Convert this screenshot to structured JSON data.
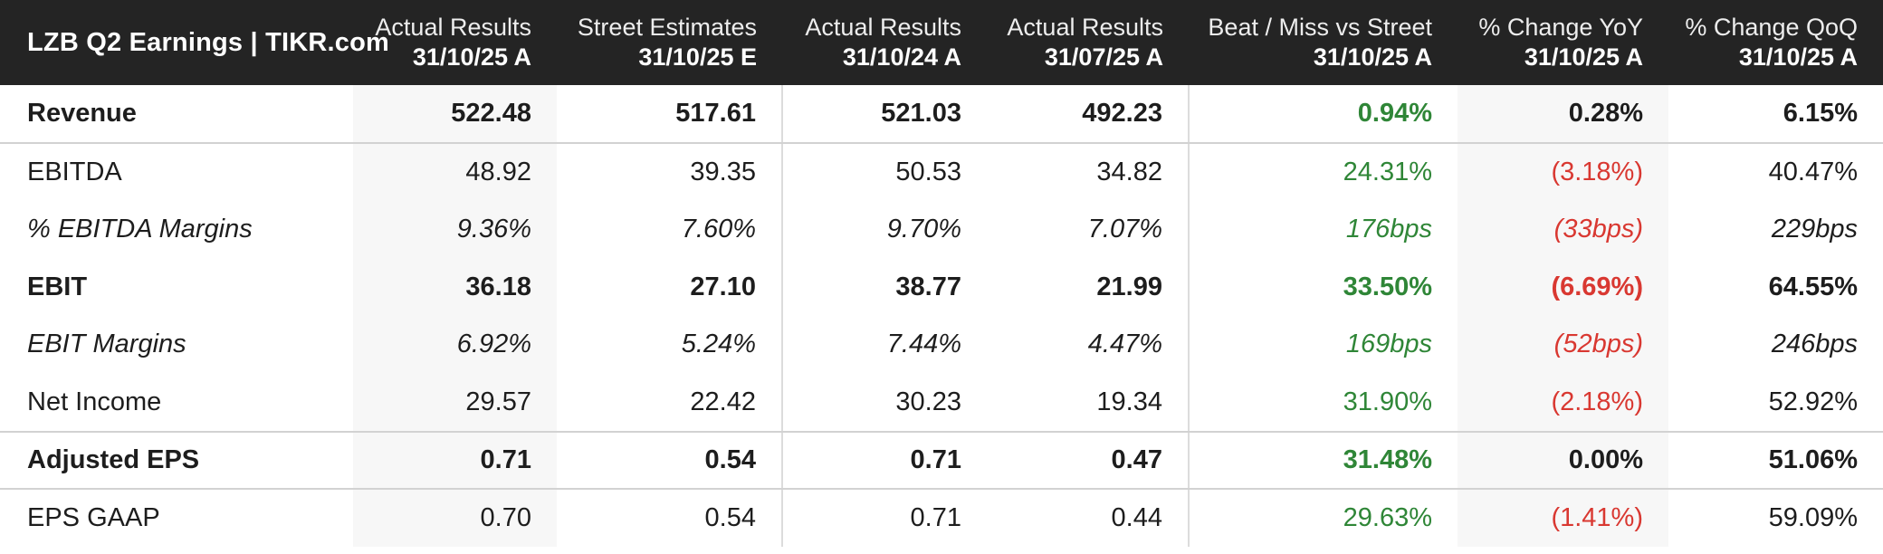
{
  "colors": {
    "green": "#2f8637",
    "red": "#d93831",
    "header_bg": "#242424",
    "column_highlight_bg": "#f7f7f7",
    "separator_line": "#d2d2d2",
    "vertical_line": "#dcdcdc",
    "body_text": "#1d1d1d"
  },
  "table": {
    "title": "LZB Q2 Earnings | TIKR.com",
    "columns": [
      {
        "label": "Actual Results",
        "date": "31/10/25 A"
      },
      {
        "label": "Street Estimates",
        "date": "31/10/25 E"
      },
      {
        "label": "Actual Results",
        "date": "31/10/24 A"
      },
      {
        "label": "Actual Results",
        "date": "31/07/25 A"
      },
      {
        "label": "Beat / Miss vs Street",
        "date": "31/10/25 A"
      },
      {
        "label": "% Change YoY",
        "date": "31/10/25 A"
      },
      {
        "label": "% Change QoQ",
        "date": "31/10/25 A"
      }
    ],
    "rows": [
      {
        "label": "Revenue",
        "style": "bold",
        "values": [
          {
            "text": "522.48",
            "color": "default"
          },
          {
            "text": "517.61",
            "color": "default"
          },
          {
            "text": "521.03",
            "color": "default"
          },
          {
            "text": "492.23",
            "color": "default"
          },
          {
            "text": "0.94%",
            "color": "green"
          },
          {
            "text": "0.28%",
            "color": "default"
          },
          {
            "text": "6.15%",
            "color": "default"
          }
        ]
      },
      {
        "label": "EBITDA",
        "style": "normal",
        "values": [
          {
            "text": "48.92",
            "color": "default"
          },
          {
            "text": "39.35",
            "color": "default"
          },
          {
            "text": "50.53",
            "color": "default"
          },
          {
            "text": "34.82",
            "color": "default"
          },
          {
            "text": "24.31%",
            "color": "green"
          },
          {
            "text": "(3.18%)",
            "color": "red"
          },
          {
            "text": "40.47%",
            "color": "default"
          }
        ]
      },
      {
        "label": "% EBITDA Margins",
        "style": "italic",
        "values": [
          {
            "text": "9.36%",
            "color": "default"
          },
          {
            "text": "7.60%",
            "color": "default"
          },
          {
            "text": "9.70%",
            "color": "default"
          },
          {
            "text": "7.07%",
            "color": "default"
          },
          {
            "text": "176bps",
            "color": "green"
          },
          {
            "text": "(33bps)",
            "color": "red"
          },
          {
            "text": "229bps",
            "color": "default"
          }
        ]
      },
      {
        "label": "EBIT",
        "style": "bold",
        "values": [
          {
            "text": "36.18",
            "color": "default"
          },
          {
            "text": "27.10",
            "color": "default"
          },
          {
            "text": "38.77",
            "color": "default"
          },
          {
            "text": "21.99",
            "color": "default"
          },
          {
            "text": "33.50%",
            "color": "green"
          },
          {
            "text": "(6.69%)",
            "color": "red"
          },
          {
            "text": "64.55%",
            "color": "default"
          }
        ]
      },
      {
        "label": "EBIT Margins",
        "style": "italic",
        "values": [
          {
            "text": "6.92%",
            "color": "default"
          },
          {
            "text": "5.24%",
            "color": "default"
          },
          {
            "text": "7.44%",
            "color": "default"
          },
          {
            "text": "4.47%",
            "color": "default"
          },
          {
            "text": "169bps",
            "color": "green"
          },
          {
            "text": "(52bps)",
            "color": "red"
          },
          {
            "text": "246bps",
            "color": "default"
          }
        ]
      },
      {
        "label": "Net Income",
        "style": "normal",
        "values": [
          {
            "text": "29.57",
            "color": "default"
          },
          {
            "text": "22.42",
            "color": "default"
          },
          {
            "text": "30.23",
            "color": "default"
          },
          {
            "text": "19.34",
            "color": "default"
          },
          {
            "text": "31.90%",
            "color": "green"
          },
          {
            "text": "(2.18%)",
            "color": "red"
          },
          {
            "text": "52.92%",
            "color": "default"
          }
        ]
      },
      {
        "label": "Adjusted EPS",
        "style": "bold",
        "values": [
          {
            "text": "0.71",
            "color": "default"
          },
          {
            "text": "0.54",
            "color": "default"
          },
          {
            "text": "0.71",
            "color": "default"
          },
          {
            "text": "0.47",
            "color": "default"
          },
          {
            "text": "31.48%",
            "color": "green"
          },
          {
            "text": "0.00%",
            "color": "default"
          },
          {
            "text": "51.06%",
            "color": "default"
          }
        ]
      },
      {
        "label": "EPS GAAP",
        "style": "normal",
        "values": [
          {
            "text": "0.70",
            "color": "default"
          },
          {
            "text": "0.54",
            "color": "default"
          },
          {
            "text": "0.71",
            "color": "default"
          },
          {
            "text": "0.44",
            "color": "default"
          },
          {
            "text": "29.63%",
            "color": "green"
          },
          {
            "text": "(1.41%)",
            "color": "red"
          },
          {
            "text": "59.09%",
            "color": "default"
          }
        ]
      }
    ]
  }
}
